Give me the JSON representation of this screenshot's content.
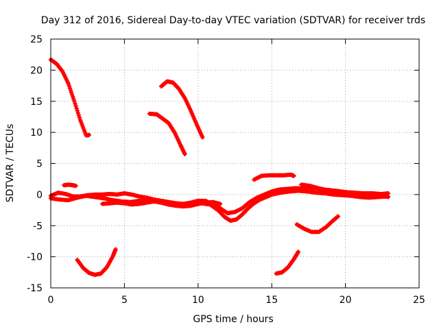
{
  "chart_data": {
    "type": "scatter",
    "title": "Day 312 of 2016, Sidereal Day-to-day VTEC variation (SDTVAR) for receiver trds",
    "xlabel": "GPS time / hours",
    "ylabel": "SDTVAR / TECUs",
    "xlim": [
      0,
      25
    ],
    "ylim": [
      -15,
      25
    ],
    "xticks": [
      "0",
      "5",
      "10",
      "15",
      "20",
      "25"
    ],
    "yticks": [
      "-15",
      "-10",
      "-5",
      "0",
      "5",
      "10",
      "15",
      "20",
      "25"
    ],
    "grid": true,
    "marker": "plus",
    "color": "#ff0000",
    "series": [
      {
        "name": "arc-1",
        "x": [
          0.0,
          0.4,
          0.8,
          1.2,
          1.6,
          2.0,
          2.4,
          2.6
        ],
        "y": [
          21.7,
          21.0,
          19.8,
          17.8,
          15.0,
          12.0,
          9.5,
          9.6
        ]
      },
      {
        "name": "arc-2",
        "x": [
          1.8,
          2.2,
          2.6,
          3.0,
          3.4,
          3.8,
          4.2,
          4.4
        ],
        "y": [
          -10.5,
          -11.8,
          -12.6,
          -12.9,
          -12.7,
          -11.7,
          -10.0,
          -8.8
        ]
      },
      {
        "name": "arc-3",
        "x": [
          6.7,
          7.2,
          7.6,
          8.0,
          8.4,
          8.8,
          9.1
        ],
        "y": [
          13.0,
          12.9,
          12.2,
          11.5,
          10.0,
          8.0,
          6.5
        ]
      },
      {
        "name": "arc-4",
        "x": [
          7.5,
          7.9,
          8.3,
          8.7,
          9.1,
          9.5,
          9.9,
          10.3
        ],
        "y": [
          17.4,
          18.2,
          18.0,
          17.0,
          15.5,
          13.5,
          11.3,
          9.2
        ]
      },
      {
        "name": "arc-5",
        "x": [
          13.8,
          14.3,
          14.8,
          15.3,
          15.8,
          16.3,
          16.5
        ],
        "y": [
          2.4,
          3.0,
          3.1,
          3.1,
          3.1,
          3.2,
          3.0
        ]
      },
      {
        "name": "arc-6",
        "x": [
          15.3,
          15.7,
          16.1,
          16.5,
          16.8
        ],
        "y": [
          -12.7,
          -12.5,
          -11.7,
          -10.4,
          -9.2
        ]
      },
      {
        "name": "arc-7",
        "x": [
          16.7,
          17.2,
          17.7,
          18.2,
          18.7,
          19.1,
          19.5
        ],
        "y": [
          -4.8,
          -5.5,
          -6.0,
          -6.0,
          -5.2,
          -4.3,
          -3.5
        ]
      },
      {
        "name": "arc-8",
        "x": [
          0.9,
          1.2,
          1.5,
          1.7
        ],
        "y": [
          1.5,
          1.6,
          1.5,
          1.4
        ]
      },
      {
        "name": "main-1",
        "x": [
          0.0,
          0.5,
          1.0,
          1.5,
          2.0,
          2.5,
          3.0,
          3.5,
          4.0,
          4.5,
          5.0,
          5.5,
          6.0,
          6.5,
          7.0,
          7.5,
          8.0,
          8.5,
          9.0,
          9.5,
          10.0,
          10.5,
          11.0,
          11.5,
          12.0,
          12.5,
          13.0,
          13.5,
          14.0,
          14.5,
          15.0,
          15.5,
          16.0,
          16.5,
          17.0,
          17.5,
          18.0,
          18.5,
          19.0,
          19.5,
          20.0,
          20.5,
          21.0,
          21.5,
          22.0,
          22.5,
          22.9
        ],
        "y": [
          -0.2,
          0.3,
          0.1,
          -0.3,
          -0.3,
          -0.1,
          0.0,
          0.0,
          0.1,
          0.0,
          0.2,
          0.0,
          -0.3,
          -0.5,
          -0.8,
          -1.0,
          -1.2,
          -1.4,
          -1.5,
          -1.3,
          -1.0,
          -1.0,
          -1.6,
          -2.2,
          -3.0,
          -2.8,
          -2.2,
          -1.2,
          -0.5,
          0.0,
          0.5,
          0.8,
          0.9,
          1.0,
          1.0,
          1.0,
          1.0,
          0.8,
          0.7,
          0.5,
          0.3,
          0.2,
          0.1,
          0.1,
          0.0,
          0.1,
          0.2
        ]
      },
      {
        "name": "main-2",
        "x": [
          0.0,
          0.6,
          1.2,
          1.8,
          2.4,
          3.0,
          3.6,
          4.2,
          4.8,
          5.4,
          6.0,
          6.6,
          7.2,
          7.8,
          8.4,
          9.0,
          9.6,
          10.2,
          10.8,
          11.4,
          11.8,
          12.2,
          12.6,
          13.0,
          13.4,
          13.8,
          14.2,
          14.6,
          15.0,
          15.6,
          16.2,
          16.8,
          17.4,
          18.0,
          18.6,
          19.2,
          19.8,
          20.4,
          21.0,
          21.6,
          22.2,
          22.9
        ],
        "y": [
          -0.6,
          -0.8,
          -0.9,
          -0.5,
          -0.2,
          -0.4,
          -0.6,
          -0.9,
          -1.1,
          -1.2,
          -1.0,
          -0.9,
          -1.1,
          -1.4,
          -1.7,
          -1.9,
          -1.7,
          -1.4,
          -1.6,
          -2.6,
          -3.6,
          -4.2,
          -4.0,
          -3.2,
          -2.2,
          -1.4,
          -0.8,
          -0.4,
          0.0,
          0.3,
          0.5,
          0.6,
          0.5,
          0.3,
          0.2,
          0.0,
          -0.1,
          -0.2,
          -0.4,
          -0.5,
          -0.4,
          -0.3
        ]
      },
      {
        "name": "main-3",
        "x": [
          3.5,
          4.0,
          4.5,
          5.0,
          5.5,
          6.0,
          6.5,
          7.0,
          7.5,
          8.0,
          8.5,
          9.0,
          9.5,
          10.0,
          10.5,
          11.0,
          11.5
        ],
        "y": [
          -1.5,
          -1.4,
          -1.3,
          -1.4,
          -1.6,
          -1.5,
          -1.3,
          -1.1,
          -1.3,
          -1.6,
          -1.8,
          -1.9,
          -1.8,
          -1.5,
          -1.3,
          -1.2,
          -1.5
        ]
      },
      {
        "name": "main-4",
        "x": [
          17.0,
          17.6,
          18.2,
          18.8,
          19.4,
          20.0,
          20.6,
          21.2,
          21.8,
          22.4,
          22.9
        ],
        "y": [
          1.6,
          1.4,
          1.0,
          0.7,
          0.6,
          0.4,
          0.3,
          0.2,
          0.2,
          0.1,
          -0.4
        ]
      }
    ]
  }
}
